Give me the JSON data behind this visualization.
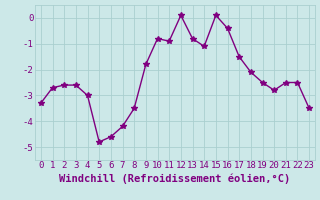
{
  "hours": [
    0,
    1,
    2,
    3,
    4,
    5,
    6,
    7,
    8,
    9,
    10,
    11,
    12,
    13,
    14,
    15,
    16,
    17,
    18,
    19,
    20,
    21,
    22,
    23
  ],
  "values": [
    -3.3,
    -2.7,
    -2.6,
    -2.6,
    -3.0,
    -4.8,
    -4.6,
    -4.2,
    -3.5,
    -1.8,
    -0.8,
    -0.9,
    0.1,
    -0.8,
    -1.1,
    0.1,
    -0.4,
    -1.5,
    -2.1,
    -2.5,
    -2.8,
    -2.5,
    -2.5,
    -3.5
  ],
  "line_color": "#800080",
  "marker": "*",
  "marker_size": 4,
  "bg_color": "#cce8e8",
  "grid_color": "#aacfcf",
  "xlabel": "Windchill (Refroidissement éolien,°C)",
  "xlim": [
    -0.5,
    23.5
  ],
  "ylim": [
    -5.5,
    0.5
  ],
  "yticks": [
    0,
    -1,
    -2,
    -3,
    -4,
    -5
  ],
  "xticks": [
    0,
    1,
    2,
    3,
    4,
    5,
    6,
    7,
    8,
    9,
    10,
    11,
    12,
    13,
    14,
    15,
    16,
    17,
    18,
    19,
    20,
    21,
    22,
    23
  ],
  "xlabel_fontsize": 7.5,
  "tick_fontsize": 6.5,
  "line_width": 1.0,
  "text_color": "#800080"
}
